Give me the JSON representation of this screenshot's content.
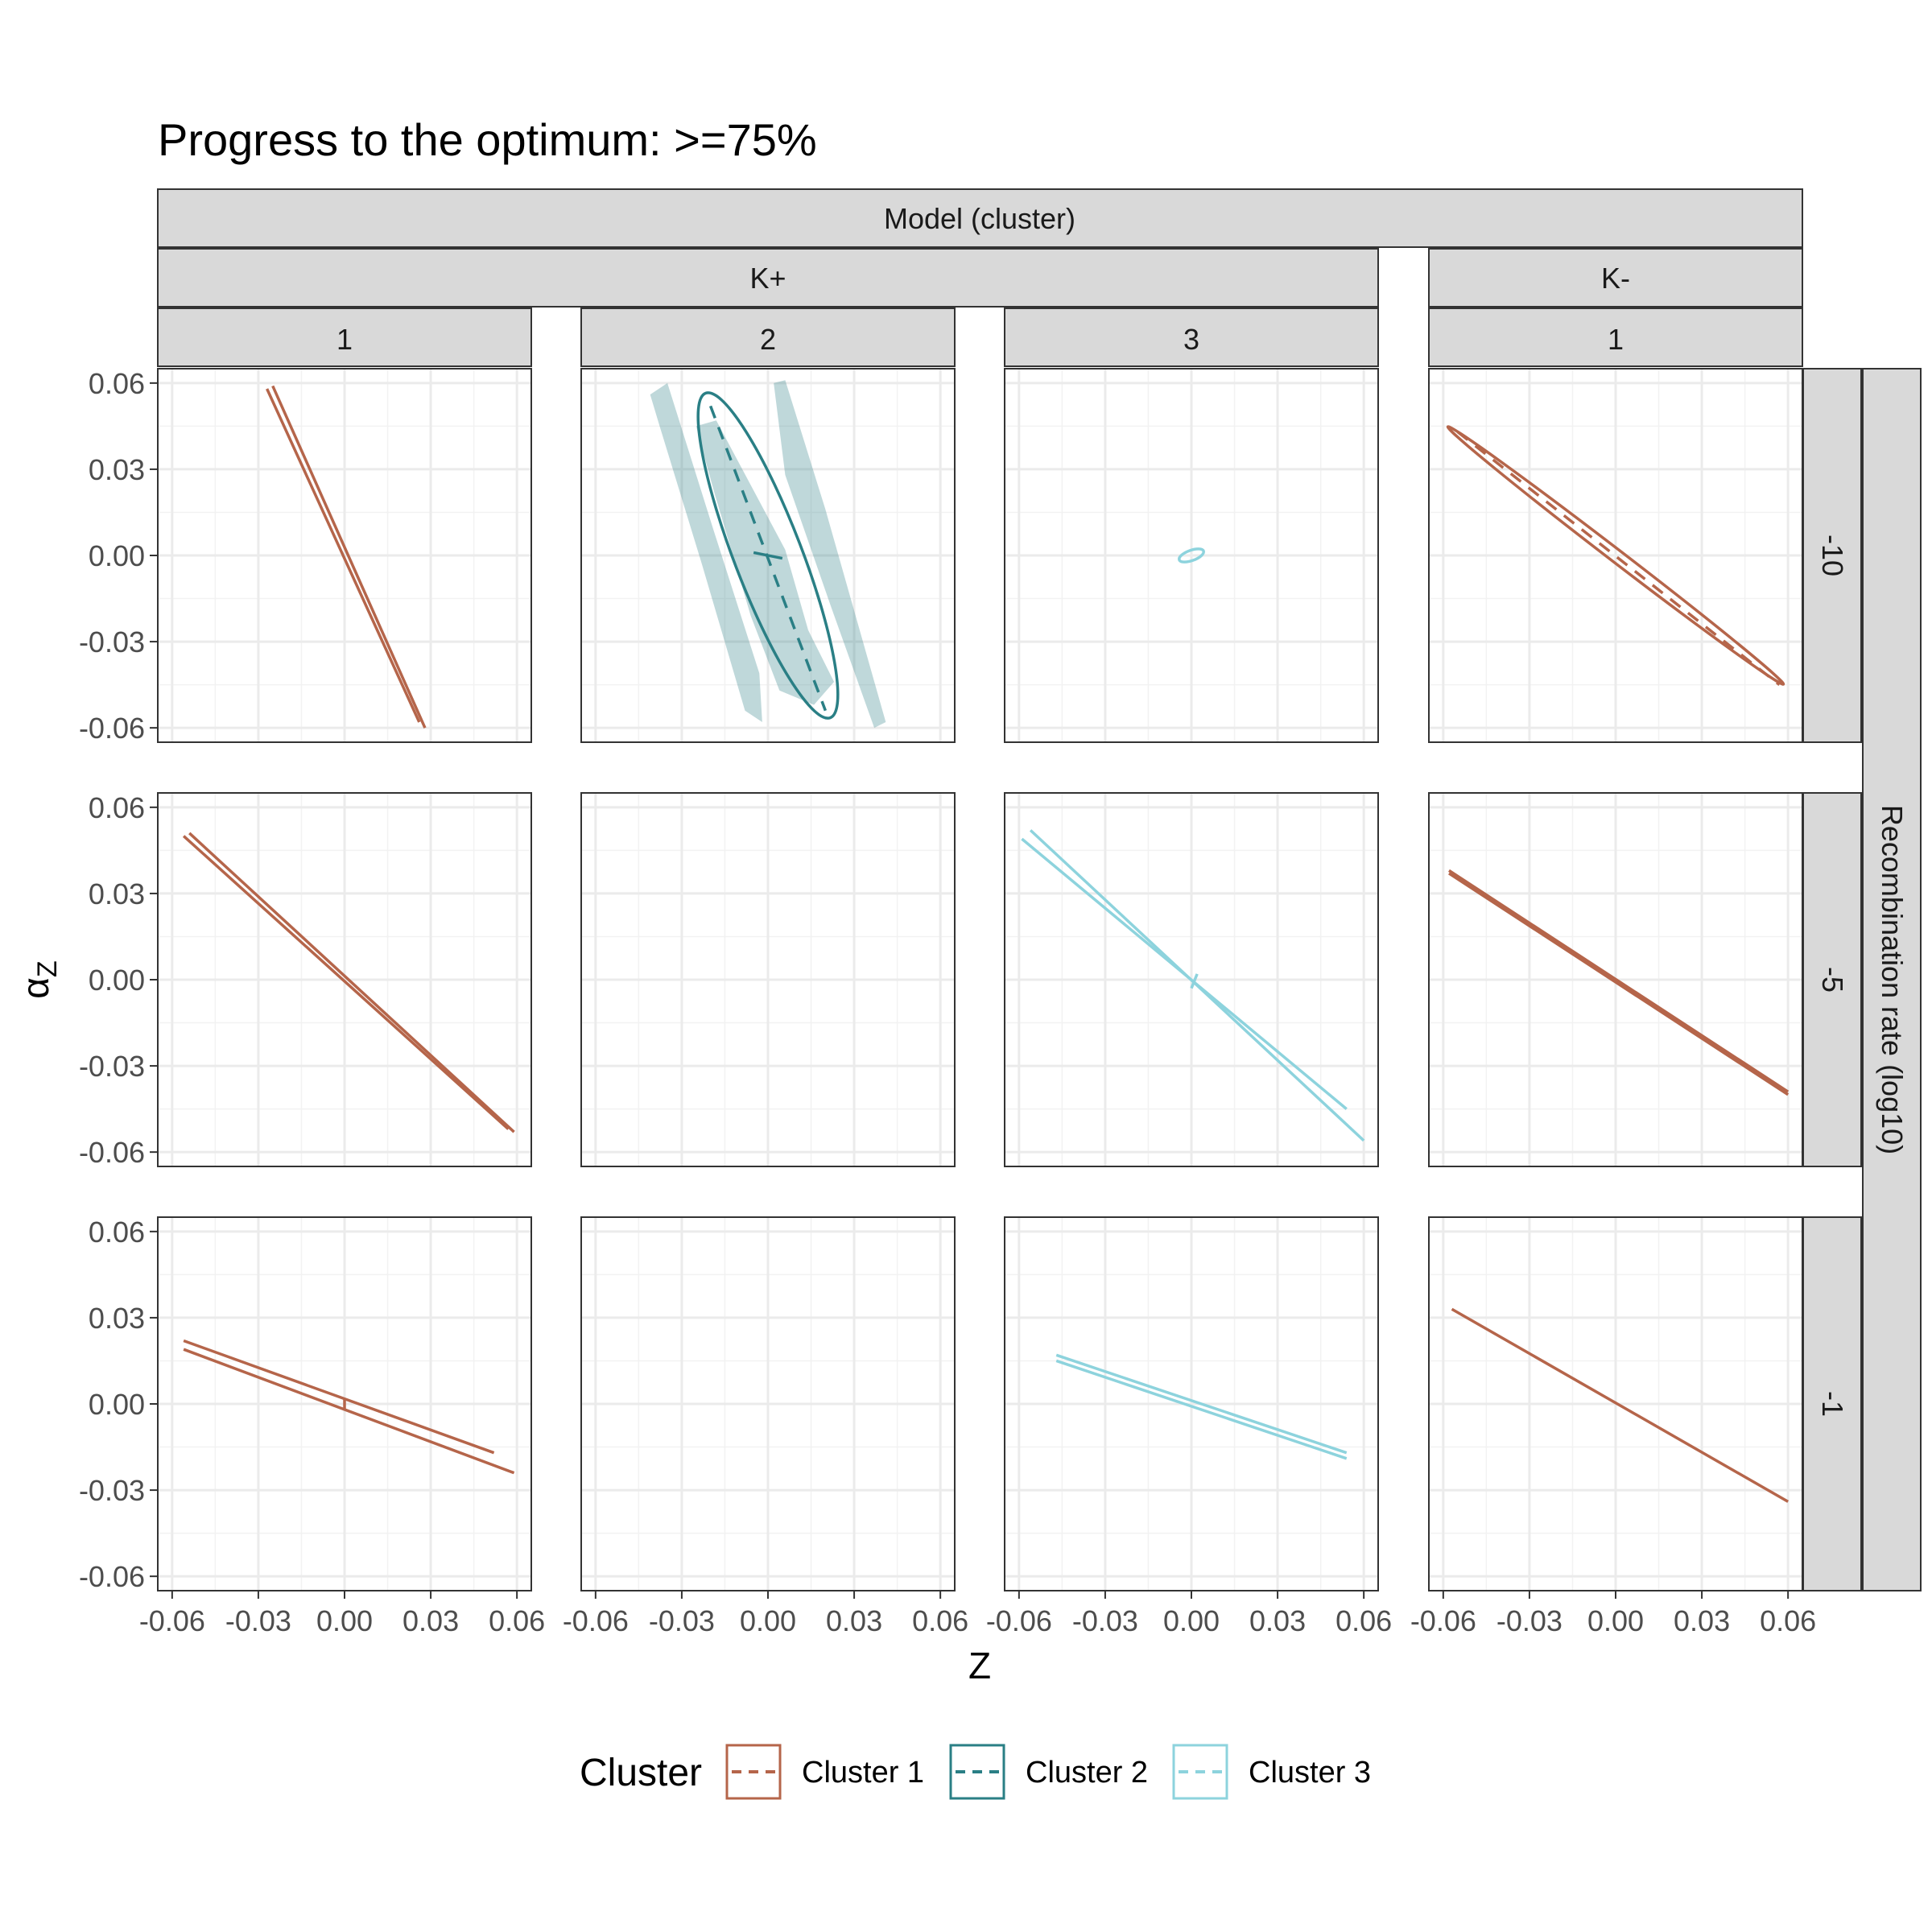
{
  "chart_data": {
    "type": "line",
    "title": "Progress to the optimum: >=75%",
    "xlabel": "Z",
    "ylabel_main": "α",
    "ylabel_sub": "Z",
    "xlim": [
      -0.065,
      0.065
    ],
    "ylim": [
      -0.065,
      0.065
    ],
    "x_ticks": [
      "-0.06",
      "-0.03",
      "0.00",
      "0.03",
      "0.06"
    ],
    "y_ticks": [
      "0.06",
      "0.03",
      "0.00",
      "-0.03",
      "-0.06"
    ],
    "x_tick_values": [
      -0.06,
      -0.03,
      0.0,
      0.03,
      0.06
    ],
    "y_tick_values": [
      0.06,
      0.03,
      0.0,
      -0.03,
      -0.06
    ],
    "col_strip_top": "Model (cluster)",
    "col_groups": [
      {
        "label": "K+",
        "clusters": [
          "1",
          "2",
          "3"
        ]
      },
      {
        "label": "K-",
        "clusters": [
          "1"
        ]
      }
    ],
    "row_strip_title": "Recombination rate (log10)",
    "rows": [
      "-10",
      "-5",
      "-1"
    ],
    "legend": {
      "title": "Cluster",
      "items": [
        {
          "label": "Cluster 1",
          "color": "#b5654a"
        },
        {
          "label": "Cluster 2",
          "color": "#2a7f85"
        },
        {
          "label": "Cluster 3",
          "color": "#8dd3dd"
        }
      ]
    },
    "panels": [
      {
        "row": 0,
        "col": 0,
        "cluster": 1,
        "type": "lines",
        "segments": [
          [
            [
              -0.027,
              0.058
            ],
            [
              0.026,
              -0.058
            ]
          ],
          [
            [
              -0.025,
              0.059
            ],
            [
              0.028,
              -0.06
            ]
          ]
        ],
        "crossbar": null
      },
      {
        "row": 0,
        "col": 1,
        "cluster": 2,
        "type": "ellipse",
        "bands": [
          [
            [
              -0.041,
              0.056
            ],
            [
              -0.035,
              0.06
            ],
            [
              -0.019,
              0.009
            ],
            [
              -0.003,
              -0.041
            ],
            [
              -0.002,
              -0.058
            ],
            [
              -0.008,
              -0.054
            ],
            [
              -0.023,
              -0.003
            ],
            [
              -0.038,
              0.046
            ]
          ],
          [
            [
              0.002,
              0.06
            ],
            [
              0.006,
              0.061
            ],
            [
              0.02,
              0.016
            ],
            [
              0.041,
              -0.058
            ],
            [
              0.037,
              -0.06
            ],
            [
              0.022,
              -0.018
            ],
            [
              0.006,
              0.028
            ]
          ],
          [
            [
              -0.025,
              0.045
            ],
            [
              -0.018,
              0.047
            ],
            [
              0.006,
              0.002
            ],
            [
              0.014,
              -0.026
            ],
            [
              0.023,
              -0.044
            ],
            [
              0.016,
              -0.052
            ],
            [
              0.004,
              -0.047
            ],
            [
              -0.006,
              -0.021
            ],
            [
              -0.019,
              0.023
            ]
          ]
        ],
        "ellipse": {
          "cx": 0.0,
          "cy": 0.0,
          "rx": 0.0605,
          "ry": 0.0118,
          "angle_deg": -69.0
        },
        "dashed_axis": [
          [
            -0.02,
            0.052
          ],
          [
            0.02,
            -0.054
          ]
        ],
        "crossbar": [
          [
            -0.005,
            0.001
          ],
          [
            0.005,
            -0.001
          ]
        ]
      },
      {
        "row": 0,
        "col": 2,
        "cluster": 3,
        "type": "ellipse",
        "ellipse": {
          "cx": 0.0,
          "cy": 0.0,
          "rx": 0.0045,
          "ry": 0.0018,
          "angle_deg": 20.0
        },
        "dashed_axis": null,
        "crossbar": null
      },
      {
        "row": 0,
        "col": 3,
        "cluster": 1,
        "type": "ellipse",
        "ellipse": {
          "cx": 0.0,
          "cy": 0.0,
          "rx": 0.0736,
          "ry": 0.0022,
          "angle_deg": -37.5
        },
        "dashed_axis": [
          [
            -0.055,
            0.043
          ],
          [
            0.057,
            -0.045
          ]
        ],
        "crossbar": null
      },
      {
        "row": 1,
        "col": 0,
        "cluster": 1,
        "type": "lines",
        "segments": [
          [
            [
              -0.056,
              0.05
            ],
            [
              0.057,
              -0.052
            ]
          ],
          [
            [
              -0.054,
              0.051
            ],
            [
              0.059,
              -0.053
            ]
          ]
        ],
        "crossbar": null
      },
      {
        "row": 1,
        "col": 1,
        "cluster": 2,
        "type": "empty"
      },
      {
        "row": 1,
        "col": 2,
        "cluster": 3,
        "type": "lines",
        "segments": [
          [
            [
              -0.059,
              0.049
            ],
            [
              0.054,
              -0.045
            ]
          ],
          [
            [
              -0.056,
              0.052
            ],
            [
              0.06,
              -0.056
            ]
          ]
        ],
        "crossbar": [
          [
            0.0,
            -0.003
          ],
          [
            0.002,
            0.002
          ]
        ]
      },
      {
        "row": 1,
        "col": 3,
        "cluster": 1,
        "type": "lines",
        "segments": [
          [
            [
              -0.058,
              0.038
            ],
            [
              0.06,
              -0.039
            ]
          ],
          [
            [
              -0.058,
              0.037
            ],
            [
              0.06,
              -0.04
            ]
          ]
        ],
        "crossbar": null
      },
      {
        "row": 2,
        "col": 0,
        "cluster": 1,
        "type": "lines",
        "segments": [
          [
            [
              -0.056,
              0.022
            ],
            [
              0.052,
              -0.017
            ]
          ],
          [
            [
              -0.056,
              0.019
            ],
            [
              0.059,
              -0.024
            ]
          ]
        ],
        "crossbar": [
          [
            0.0,
            -0.002
          ],
          [
            0.0,
            0.002
          ]
        ]
      },
      {
        "row": 2,
        "col": 1,
        "cluster": 2,
        "type": "empty"
      },
      {
        "row": 2,
        "col": 2,
        "cluster": 3,
        "type": "lines",
        "segments": [
          [
            [
              -0.047,
              0.017
            ],
            [
              0.054,
              -0.017
            ]
          ],
          [
            [
              -0.047,
              0.015
            ],
            [
              0.054,
              -0.019
            ]
          ]
        ],
        "crossbar": null
      },
      {
        "row": 2,
        "col": 3,
        "cluster": 1,
        "type": "lines",
        "segments": [
          [
            [
              -0.057,
              0.033
            ],
            [
              0.06,
              -0.034
            ]
          ]
        ],
        "crossbar": null
      }
    ]
  }
}
